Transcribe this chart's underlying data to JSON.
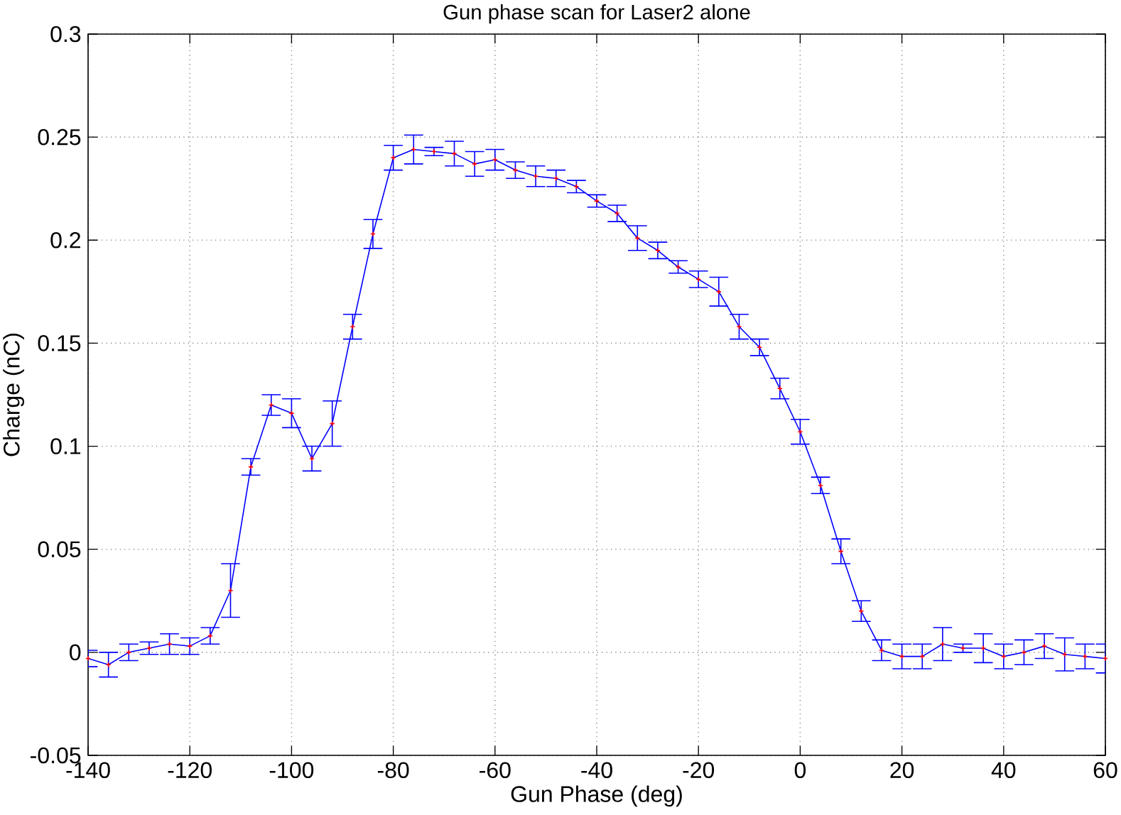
{
  "chart_data": {
    "type": "line",
    "title": "Gun phase scan for Laser2 alone",
    "xlabel": "Gun Phase (deg)",
    "ylabel": "Charge (nC)",
    "x": [
      -140,
      -136,
      -132,
      -128,
      -124,
      -120,
      -116,
      -112,
      -108,
      -104,
      -100,
      -96,
      -92,
      -88,
      -84,
      -80,
      -76,
      -72,
      -68,
      -64,
      -60,
      -56,
      -52,
      -48,
      -44,
      -40,
      -36,
      -32,
      -28,
      -24,
      -20,
      -16,
      -12,
      -8,
      -4,
      0,
      4,
      8,
      12,
      16,
      20,
      24,
      28,
      32,
      36,
      40,
      44,
      48,
      52,
      56,
      60
    ],
    "series": [
      {
        "color": "#0000ff",
        "values": [
          -0.003,
          -0.006,
          0.0,
          0.002,
          0.004,
          0.003,
          0.008,
          0.03,
          0.09,
          0.12,
          0.116,
          0.094,
          0.111,
          0.158,
          0.203,
          0.24,
          0.244,
          0.243,
          0.242,
          0.237,
          0.239,
          0.234,
          0.231,
          0.23,
          0.226,
          0.219,
          0.213,
          0.201,
          0.195,
          0.187,
          0.181,
          0.175,
          0.158,
          0.148,
          0.128,
          0.107,
          0.081,
          0.049,
          0.02,
          0.001,
          -0.002,
          -0.002,
          0.004,
          0.002,
          0.002,
          -0.002,
          0.0,
          0.003,
          -0.001,
          -0.002,
          -0.003
        ],
        "errors": [
          0.004,
          0.006,
          0.004,
          0.003,
          0.005,
          0.004,
          0.004,
          0.013,
          0.004,
          0.005,
          0.007,
          0.006,
          0.011,
          0.006,
          0.007,
          0.006,
          0.007,
          0.002,
          0.006,
          0.006,
          0.005,
          0.004,
          0.005,
          0.004,
          0.003,
          0.003,
          0.004,
          0.006,
          0.004,
          0.003,
          0.004,
          0.007,
          0.006,
          0.004,
          0.005,
          0.006,
          0.004,
          0.006,
          0.005,
          0.005,
          0.006,
          0.006,
          0.008,
          0.002,
          0.007,
          0.006,
          0.006,
          0.006,
          0.008,
          0.006,
          0.007
        ]
      }
    ],
    "xlim": [
      -140,
      60
    ],
    "xticks": [
      -140,
      -120,
      -100,
      -80,
      -60,
      -40,
      -20,
      0,
      20,
      40,
      60
    ],
    "ylim": [
      -0.05,
      0.3
    ],
    "yticks": [
      -0.05,
      0,
      0.05,
      0.1,
      0.15,
      0.2,
      0.25,
      0.3
    ],
    "grid": true,
    "marker": "cross",
    "line_style": "solid"
  }
}
